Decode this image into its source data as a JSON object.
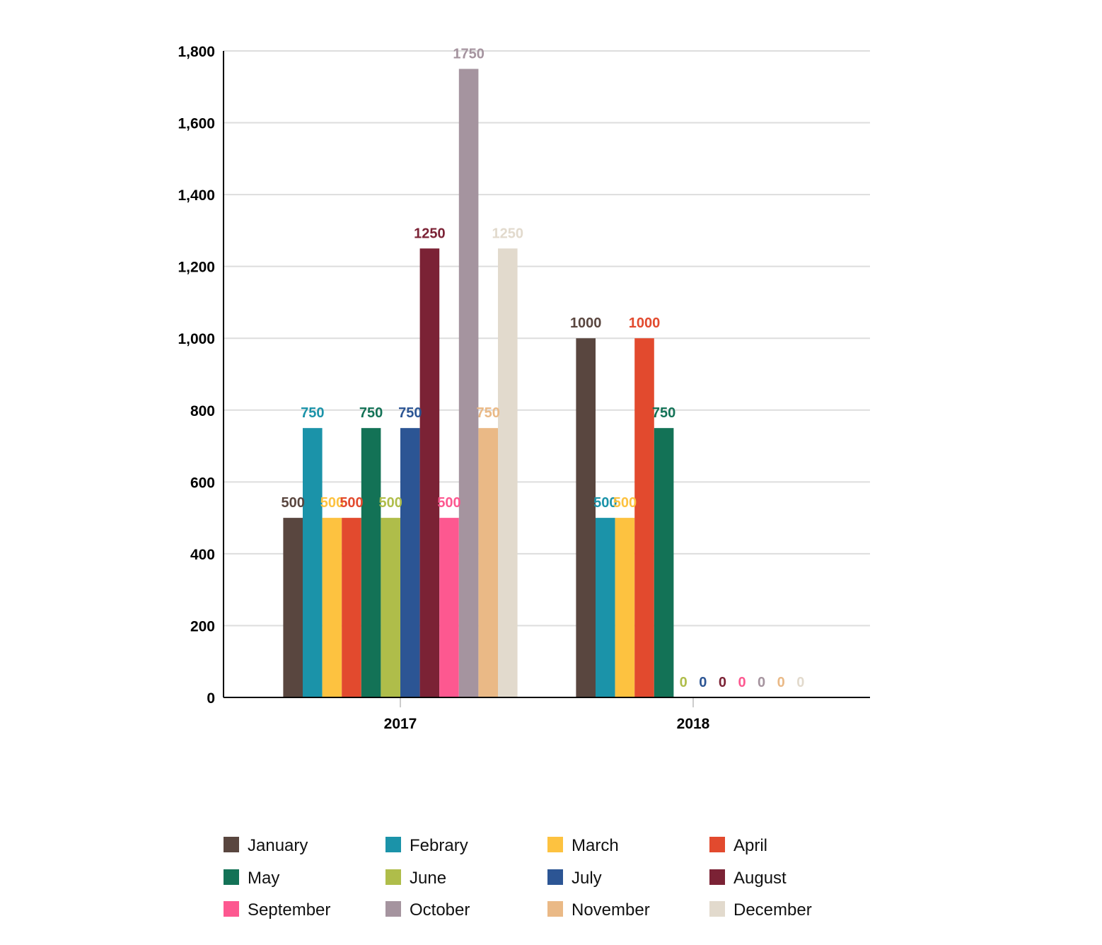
{
  "chart_data": {
    "type": "bar",
    "title": "",
    "xlabel": "",
    "ylabel": "",
    "categories": [
      "2017",
      "2018"
    ],
    "ylim": [
      0,
      1800
    ],
    "yticks": [
      0,
      200,
      400,
      600,
      800,
      1000,
      1200,
      1400,
      1600,
      1800
    ],
    "ytick_labels": [
      "0",
      "200",
      "400",
      "600",
      "800",
      "1,000",
      "1,200",
      "1,400",
      "1,600",
      "1,800"
    ],
    "grid": true,
    "legend_position": "bottom",
    "series": [
      {
        "name": "January",
        "color": "#59463f",
        "values": [
          500,
          1000
        ]
      },
      {
        "name": "Febrary",
        "color": "#1b93a9",
        "values": [
          750,
          500
        ]
      },
      {
        "name": "March",
        "color": "#fdc240",
        "values": [
          500,
          500
        ]
      },
      {
        "name": "April",
        "color": "#e24a2e",
        "values": [
          500,
          1000
        ]
      },
      {
        "name": "May",
        "color": "#137256",
        "values": [
          750,
          750
        ]
      },
      {
        "name": "June",
        "color": "#afbd4a",
        "values": [
          500,
          0
        ]
      },
      {
        "name": "July",
        "color": "#2c5594",
        "values": [
          750,
          0
        ]
      },
      {
        "name": "August",
        "color": "#7b2235",
        "values": [
          1250,
          0
        ]
      },
      {
        "name": "September",
        "color": "#fd5890",
        "values": [
          500,
          0
        ]
      },
      {
        "name": "October",
        "color": "#a5949f",
        "values": [
          1750,
          0
        ]
      },
      {
        "name": "November",
        "color": "#eab986",
        "values": [
          750,
          0
        ]
      },
      {
        "name": "December",
        "color": "#e2dacd",
        "values": [
          1250,
          0
        ]
      }
    ]
  }
}
